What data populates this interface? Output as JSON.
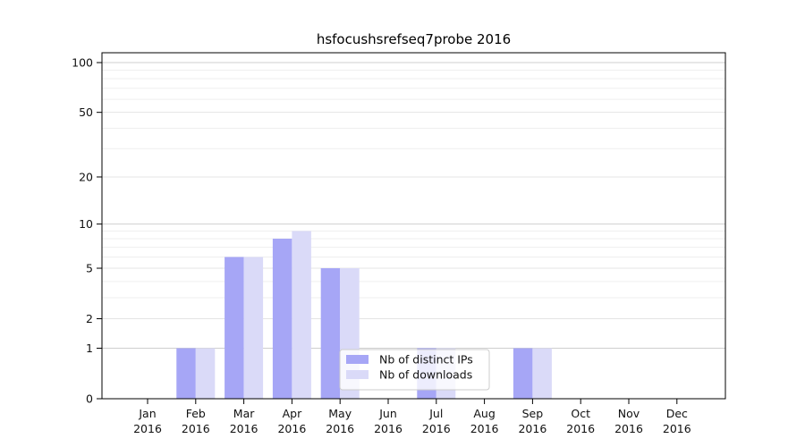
{
  "title": "hsfocushsrefseq7probe 2016",
  "chart_data": {
    "type": "bar",
    "title": "hsfocushsrefseq7probe 2016",
    "categories": [
      "Jan",
      "Feb",
      "Mar",
      "Apr",
      "May",
      "Jun",
      "Jul",
      "Aug",
      "Sep",
      "Oct",
      "Nov",
      "Dec"
    ],
    "category_year": "2016",
    "series": [
      {
        "name": "Nb of distinct IPs",
        "color": "#a6a6f6",
        "values": [
          0,
          1,
          6,
          8,
          5,
          0,
          1,
          0,
          1,
          0,
          0,
          0
        ]
      },
      {
        "name": "Nb of downloads",
        "color": "#dadaf8",
        "values": [
          0,
          1,
          6,
          9,
          5,
          0,
          1,
          0,
          1,
          0,
          0,
          0
        ]
      }
    ],
    "xlabel": "",
    "ylabel": "",
    "y_scale": "log1p",
    "y_ticks_labeled": [
      0,
      1,
      2,
      5,
      10,
      20,
      50,
      100
    ],
    "y_ticks_decade": [
      1,
      10,
      100
    ],
    "y_ticks_minor": [
      3,
      4,
      6,
      7,
      8,
      9,
      30,
      40,
      60,
      70,
      80,
      90
    ],
    "ylim": [
      0,
      115
    ],
    "grid": true,
    "legend_position": "lower-center"
  },
  "colors": {
    "background": "#ffffff",
    "axis": "#000000",
    "text": "#111111",
    "grid_decade": "#cfcfcf",
    "grid_labeled": "#e4e4e4",
    "grid_minor": "#efefef",
    "legend_border": "#cccccc",
    "legend_bg": "rgba(255,255,255,0.8)"
  }
}
